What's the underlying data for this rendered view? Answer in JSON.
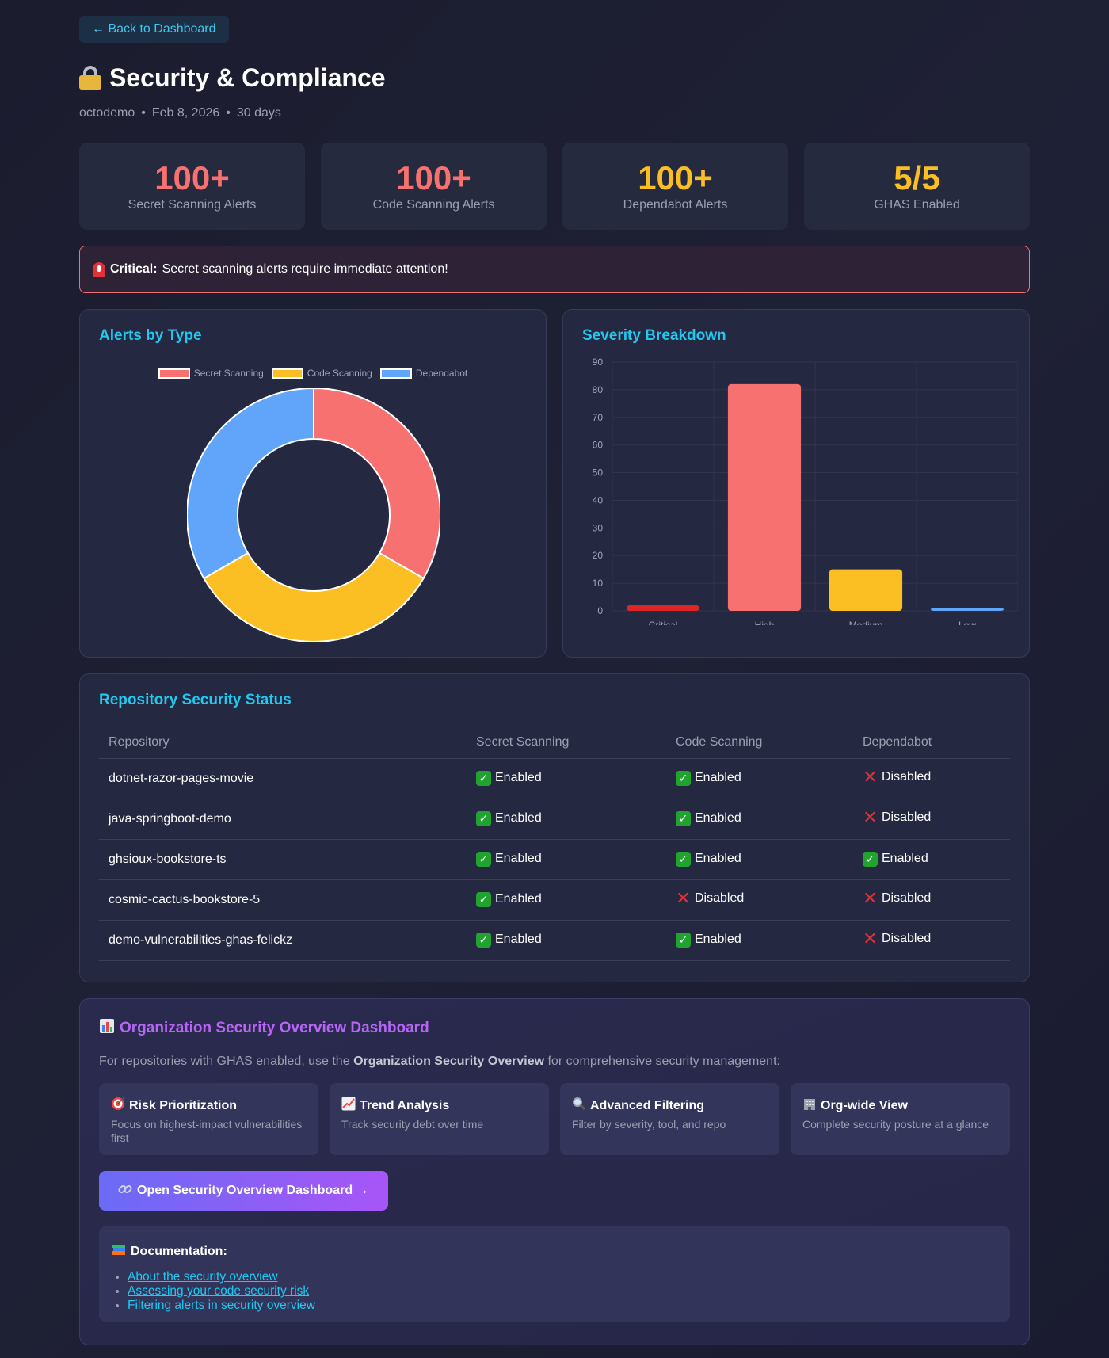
{
  "nav": {
    "back_label": "← Back to Dashboard"
  },
  "header": {
    "title": "Security & Compliance",
    "org": "octodemo",
    "date": "Feb 8, 2026",
    "period": "30 days",
    "separator": "•"
  },
  "stats": [
    {
      "value": "100+",
      "label": "Secret Scanning Alerts",
      "color": "#f87171"
    },
    {
      "value": "100+",
      "label": "Code Scanning Alerts",
      "color": "#f87171"
    },
    {
      "value": "100+",
      "label": "Dependabot Alerts",
      "color": "#fbbf24"
    },
    {
      "value": "5/5",
      "label": "GHAS Enabled",
      "color": "#fbbf24"
    }
  ],
  "alert": {
    "strong": "Critical:",
    "text": "Secret scanning alerts require immediate attention!"
  },
  "chart_data": [
    {
      "type": "pie",
      "title": "Alerts by Type",
      "categories": [
        "Secret Scanning",
        "Code Scanning",
        "Dependabot"
      ],
      "values": [
        100,
        100,
        100
      ],
      "colors": [
        "#f87171",
        "#fbbf24",
        "#60a5fa"
      ],
      "legend": "top"
    },
    {
      "type": "bar",
      "title": "Severity Breakdown",
      "categories": [
        "Critical",
        "High",
        "Medium",
        "Low"
      ],
      "values": [
        2,
        82,
        15,
        1
      ],
      "colors": [
        "#dc2626",
        "#f87171",
        "#fbbf24",
        "#60a5fa"
      ],
      "ylim": [
        0,
        90
      ],
      "yticks": [
        0,
        10,
        20,
        30,
        40,
        50,
        60,
        70,
        80,
        90
      ],
      "grid": true
    }
  ],
  "repo_table": {
    "title": "Repository Security Status",
    "columns": [
      "Repository",
      "Secret Scanning",
      "Code Scanning",
      "Dependabot"
    ],
    "rows": [
      {
        "name": "dotnet-razor-pages-movie",
        "secret": "Enabled",
        "code": "Enabled",
        "dependabot": "Disabled"
      },
      {
        "name": "java-springboot-demo",
        "secret": "Enabled",
        "code": "Enabled",
        "dependabot": "Disabled"
      },
      {
        "name": "ghsioux-bookstore-ts",
        "secret": "Enabled",
        "code": "Enabled",
        "dependabot": "Enabled"
      },
      {
        "name": "cosmic-cactus-bookstore-5",
        "secret": "Enabled",
        "code": "Disabled",
        "dependabot": "Disabled"
      },
      {
        "name": "demo-vulnerabilities-ghas-felickz",
        "secret": "Enabled",
        "code": "Enabled",
        "dependabot": "Disabled"
      }
    ]
  },
  "org_overview": {
    "title": "Organization Security Overview Dashboard",
    "desc_prefix": "For repositories with GHAS enabled, use the",
    "desc_bold": "Organization Security Overview",
    "desc_suffix": "for comprehensive security management:",
    "features": [
      {
        "icon": "target-icon",
        "title": "Risk Prioritization",
        "desc": "Focus on highest-impact vulnerabilities first"
      },
      {
        "icon": "trend-chart-icon",
        "title": "Trend Analysis",
        "desc": "Track security debt over time"
      },
      {
        "icon": "magnifier-icon",
        "title": "Advanced Filtering",
        "desc": "Filter by severity, tool, and repo"
      },
      {
        "icon": "building-icon",
        "title": "Org-wide View",
        "desc": "Complete security posture at a glance"
      }
    ],
    "cta_label": "Open Security Overview Dashboard →",
    "docs_title": "Documentation:",
    "docs_links": [
      "About the security overview",
      "Assessing your code security risk",
      "Filtering alerts in security overview"
    ]
  }
}
